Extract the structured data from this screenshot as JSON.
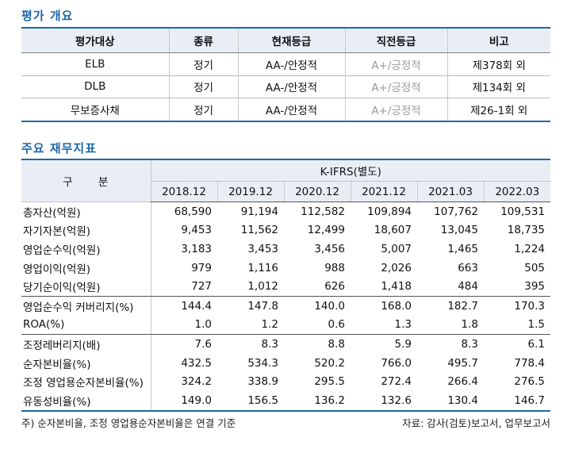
{
  "rating_overview": {
    "title": "평가 개요",
    "headers": [
      "평가대상",
      "종류",
      "현재등급",
      "직전등급",
      "비고"
    ],
    "rows": [
      [
        "ELB",
        "정기",
        "AA-/안정적",
        "A+/긍정적",
        "제378회 외"
      ],
      [
        "DLB",
        "정기",
        "AA-/안정적",
        "A+/긍정적",
        "제134회 외"
      ],
      [
        "무보증사채",
        "정기",
        "AA-/안정적",
        "A+/긍정적",
        "제26-1회 외"
      ]
    ]
  },
  "financials": {
    "title": "주요 재무지표",
    "label_header": "구 분",
    "group_header": "K-IFRS(별도)",
    "periods": [
      "2018.12",
      "2019.12",
      "2020.12",
      "2021.12",
      "2021.03",
      "2022.03"
    ],
    "groups": [
      [
        {
          "label": "총자산(억원)",
          "values": [
            "68,590",
            "91,194",
            "112,582",
            "109,894",
            "107,762",
            "109,531"
          ]
        },
        {
          "label": "자기자본(억원)",
          "values": [
            "9,453",
            "11,562",
            "12,499",
            "18,607",
            "13,045",
            "18,735"
          ]
        },
        {
          "label": "영업순수익(억원)",
          "values": [
            "3,183",
            "3,453",
            "3,456",
            "5,007",
            "1,465",
            "1,224"
          ]
        },
        {
          "label": "영업이익(억원)",
          "values": [
            "979",
            "1,116",
            "988",
            "2,026",
            "663",
            "505"
          ]
        },
        {
          "label": "당기순이익(억원)",
          "values": [
            "727",
            "1,012",
            "626",
            "1,418",
            "484",
            "395"
          ]
        }
      ],
      [
        {
          "label": "영업순수익 커버리지(%)",
          "values": [
            "144.4",
            "147.8",
            "140.0",
            "168.0",
            "182.7",
            "170.3"
          ]
        },
        {
          "label": "ROA(%)",
          "values": [
            "1.0",
            "1.2",
            "0.6",
            "1.3",
            "1.8",
            "1.5"
          ]
        }
      ],
      [
        {
          "label": "조정레버리지(배)",
          "values": [
            "7.6",
            "8.3",
            "8.8",
            "5.9",
            "8.3",
            "6.1"
          ]
        },
        {
          "label": "순자본비율(%)",
          "values": [
            "432.5",
            "534.3",
            "520.2",
            "766.0",
            "495.7",
            "778.4"
          ]
        },
        {
          "label": "조정 영업용순자본비율(%)",
          "values": [
            "324.2",
            "338.9",
            "295.5",
            "272.4",
            "266.4",
            "276.5"
          ]
        },
        {
          "label": "유동성비율(%)",
          "values": [
            "149.0",
            "156.5",
            "136.2",
            "132.6",
            "130.4",
            "146.7"
          ]
        }
      ]
    ]
  },
  "footnote": "주) 순자본비율, 조정 영업용순자본비율은 연결 기준",
  "source": "자료: 감사(검토)보고서, 업무보고서",
  "colors": {
    "accent": "#1f66a8",
    "header_bg": "#e9eef5",
    "muted_text": "#9a9a9a"
  }
}
